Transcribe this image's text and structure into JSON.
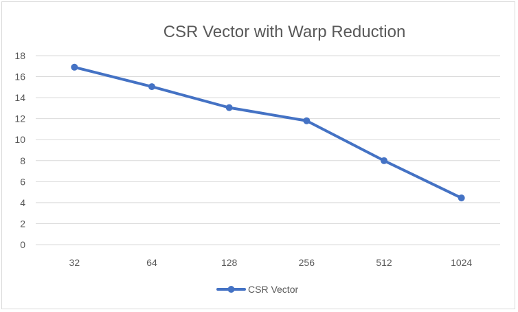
{
  "chart_data": {
    "type": "line",
    "title": "CSR Vector with Warp Reduction",
    "xlabel": "",
    "ylabel": "",
    "categories": [
      "32",
      "64",
      "128",
      "256",
      "512",
      "1024"
    ],
    "series": [
      {
        "name": "CSR Vector",
        "values": [
          16.9,
          15.05,
          13.05,
          11.8,
          8.0,
          4.45
        ],
        "color": "#4472c4"
      }
    ],
    "ylim": [
      0,
      18
    ],
    "yticks": [
      "0",
      "2",
      "4",
      "6",
      "8",
      "10",
      "12",
      "14",
      "16",
      "18"
    ],
    "grid": true,
    "legend": "bottom"
  }
}
